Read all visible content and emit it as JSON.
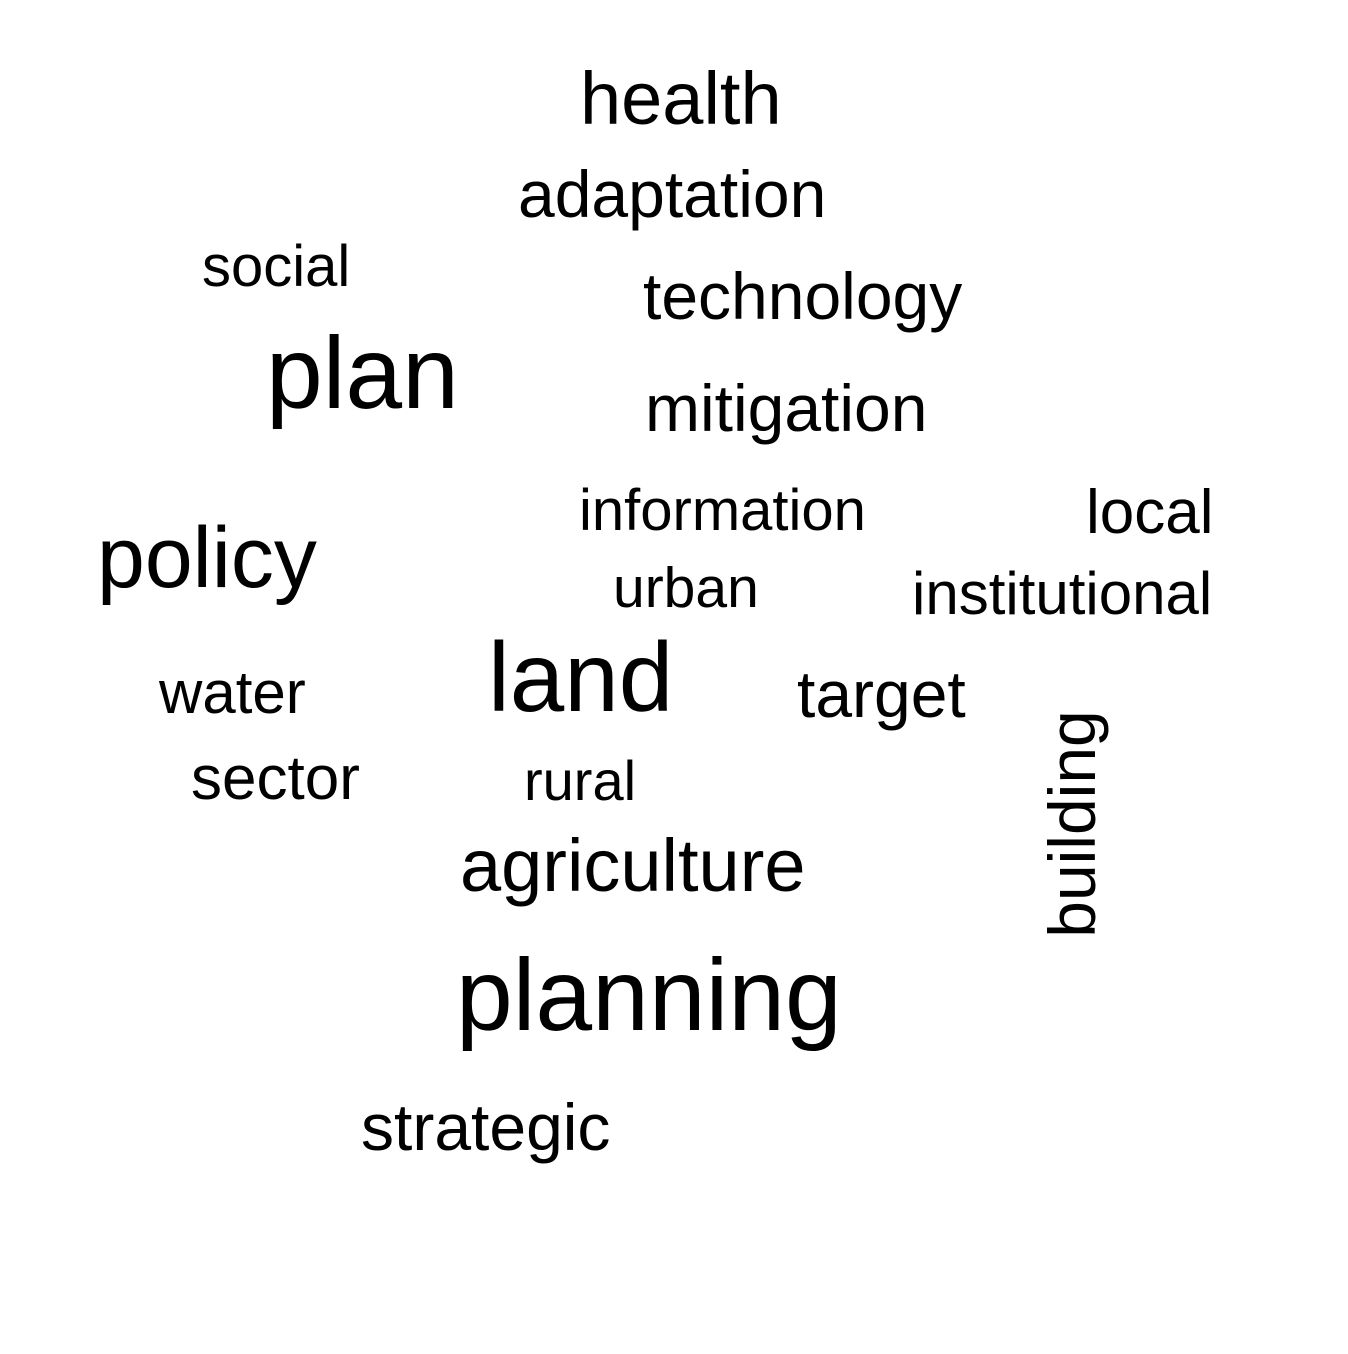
{
  "words": {
    "health": "health",
    "adaptation": "adaptation",
    "social": "social",
    "technology": "technology",
    "plan": "plan",
    "mitigation": "mitigation",
    "information": "information",
    "local": "local",
    "policy": "policy",
    "urban": "urban",
    "institutional": "institutional",
    "water": "water",
    "land": "land",
    "target": "target",
    "building": "building",
    "sector": "sector",
    "rural": "rural",
    "agriculture": "agriculture",
    "planning": "planning",
    "strategic": "strategic"
  },
  "colors": {
    "text": "#000000",
    "background": "#ffffff"
  }
}
